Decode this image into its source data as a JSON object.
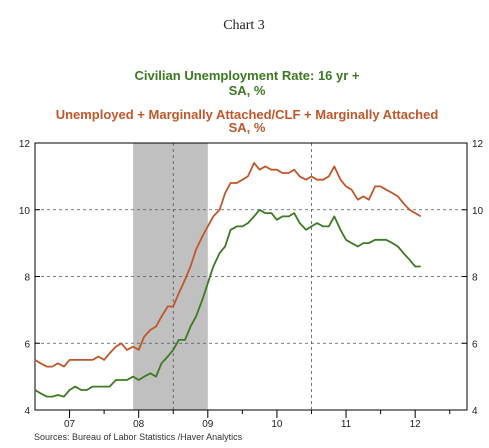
{
  "chart_data": {
    "type": "line",
    "chart_label": "Chart 3",
    "title_lines": [
      {
        "series": 0,
        "lines": [
          "Civilian Unemployment Rate: 16 yr +",
          "SA, %"
        ]
      },
      {
        "series": 1,
        "lines": [
          "Unemployed + Marginally Attached/CLF + Marginally Attached",
          "SA, %"
        ]
      }
    ],
    "source": "Sources:  Bureau of Labor Statistics /Haver Analytics",
    "xlim": [
      2006.5,
      2012.75
    ],
    "ylim": [
      4,
      12
    ],
    "y_ticks": [
      4,
      6,
      8,
      10,
      12
    ],
    "x_tick_labels": [
      {
        "label": "07",
        "center": 2007.0
      },
      {
        "label": "08",
        "center": 2008.0
      },
      {
        "label": "09",
        "center": 2009.0
      },
      {
        "label": "10",
        "center": 2010.0
      },
      {
        "label": "11",
        "center": 2011.0
      },
      {
        "label": "12",
        "center": 2012.0
      }
    ],
    "x_minor_ticks": [
      2007.5,
      2008.5,
      2009.5,
      2010.5,
      2011.5,
      2012.5
    ],
    "x_major_ticks": [
      2007.0,
      2008.0,
      2009.0,
      2010.0,
      2011.0,
      2012.0
    ],
    "v_gridlines": [
      2008.5,
      2010.5
    ],
    "h_gridlines": [
      6,
      8,
      10
    ],
    "recession": {
      "start": 2007.92,
      "end": 2009.0
    },
    "grid": true,
    "series": [
      {
        "color": "#3d7a23",
        "points": [
          [
            2006.5,
            4.6
          ],
          [
            2006.58,
            4.5
          ],
          [
            2006.67,
            4.4
          ],
          [
            2006.75,
            4.4
          ],
          [
            2006.83,
            4.45
          ],
          [
            2006.92,
            4.4
          ],
          [
            2007.0,
            4.6
          ],
          [
            2007.08,
            4.7
          ],
          [
            2007.17,
            4.6
          ],
          [
            2007.25,
            4.6
          ],
          [
            2007.33,
            4.7
          ],
          [
            2007.42,
            4.7
          ],
          [
            2007.5,
            4.7
          ],
          [
            2007.58,
            4.7
          ],
          [
            2007.67,
            4.9
          ],
          [
            2007.75,
            4.9
          ],
          [
            2007.83,
            4.9
          ],
          [
            2007.92,
            5.0
          ],
          [
            2008.0,
            4.9
          ],
          [
            2008.08,
            5.0
          ],
          [
            2008.17,
            5.1
          ],
          [
            2008.25,
            5.0
          ],
          [
            2008.33,
            5.4
          ],
          [
            2008.42,
            5.6
          ],
          [
            2008.5,
            5.8
          ],
          [
            2008.58,
            6.1
          ],
          [
            2008.67,
            6.1
          ],
          [
            2008.75,
            6.5
          ],
          [
            2008.83,
            6.8
          ],
          [
            2008.92,
            7.3
          ],
          [
            2009.0,
            7.8
          ],
          [
            2009.08,
            8.3
          ],
          [
            2009.17,
            8.7
          ],
          [
            2009.25,
            8.9
          ],
          [
            2009.33,
            9.4
          ],
          [
            2009.42,
            9.5
          ],
          [
            2009.5,
            9.5
          ],
          [
            2009.58,
            9.6
          ],
          [
            2009.67,
            9.8
          ],
          [
            2009.75,
            10.0
          ],
          [
            2009.83,
            9.9
          ],
          [
            2009.92,
            9.9
          ],
          [
            2010.0,
            9.7
          ],
          [
            2010.08,
            9.8
          ],
          [
            2010.17,
            9.8
          ],
          [
            2010.25,
            9.9
          ],
          [
            2010.33,
            9.6
          ],
          [
            2010.42,
            9.4
          ],
          [
            2010.5,
            9.5
          ],
          [
            2010.58,
            9.6
          ],
          [
            2010.67,
            9.5
          ],
          [
            2010.75,
            9.5
          ],
          [
            2010.83,
            9.8
          ],
          [
            2010.92,
            9.4
          ],
          [
            2011.0,
            9.1
          ],
          [
            2011.08,
            9.0
          ],
          [
            2011.17,
            8.9
          ],
          [
            2011.25,
            9.0
          ],
          [
            2011.33,
            9.0
          ],
          [
            2011.42,
            9.1
          ],
          [
            2011.5,
            9.1
          ],
          [
            2011.58,
            9.1
          ],
          [
            2011.67,
            9.0
          ],
          [
            2011.75,
            8.9
          ],
          [
            2011.83,
            8.7
          ],
          [
            2011.92,
            8.5
          ],
          [
            2012.0,
            8.3
          ],
          [
            2012.08,
            8.3
          ]
        ]
      },
      {
        "color": "#c0572b",
        "points": [
          [
            2006.5,
            5.5
          ],
          [
            2006.58,
            5.4
          ],
          [
            2006.67,
            5.3
          ],
          [
            2006.75,
            5.3
          ],
          [
            2006.83,
            5.4
          ],
          [
            2006.92,
            5.3
          ],
          [
            2007.0,
            5.5
          ],
          [
            2007.08,
            5.5
          ],
          [
            2007.17,
            5.5
          ],
          [
            2007.25,
            5.5
          ],
          [
            2007.33,
            5.5
          ],
          [
            2007.42,
            5.6
          ],
          [
            2007.5,
            5.5
          ],
          [
            2007.58,
            5.7
          ],
          [
            2007.67,
            5.9
          ],
          [
            2007.75,
            6.0
          ],
          [
            2007.83,
            5.8
          ],
          [
            2007.92,
            5.9
          ],
          [
            2008.0,
            5.8
          ],
          [
            2008.08,
            6.2
          ],
          [
            2008.17,
            6.4
          ],
          [
            2008.25,
            6.5
          ],
          [
            2008.33,
            6.8
          ],
          [
            2008.42,
            7.1
          ],
          [
            2008.5,
            7.1
          ],
          [
            2008.58,
            7.5
          ],
          [
            2008.67,
            7.9
          ],
          [
            2008.75,
            8.3
          ],
          [
            2008.83,
            8.8
          ],
          [
            2008.92,
            9.2
          ],
          [
            2009.0,
            9.5
          ],
          [
            2009.08,
            9.8
          ],
          [
            2009.17,
            10.0
          ],
          [
            2009.25,
            10.5
          ],
          [
            2009.33,
            10.8
          ],
          [
            2009.42,
            10.8
          ],
          [
            2009.5,
            10.9
          ],
          [
            2009.58,
            11.0
          ],
          [
            2009.67,
            11.4
          ],
          [
            2009.75,
            11.2
          ],
          [
            2009.83,
            11.3
          ],
          [
            2009.92,
            11.2
          ],
          [
            2010.0,
            11.2
          ],
          [
            2010.08,
            11.1
          ],
          [
            2010.17,
            11.1
          ],
          [
            2010.25,
            11.2
          ],
          [
            2010.33,
            11.0
          ],
          [
            2010.42,
            10.9
          ],
          [
            2010.5,
            11.0
          ],
          [
            2010.58,
            10.9
          ],
          [
            2010.67,
            10.9
          ],
          [
            2010.75,
            11.0
          ],
          [
            2010.83,
            11.3
          ],
          [
            2010.92,
            10.9
          ],
          [
            2011.0,
            10.7
          ],
          [
            2011.08,
            10.6
          ],
          [
            2011.17,
            10.3
          ],
          [
            2011.25,
            10.4
          ],
          [
            2011.33,
            10.3
          ],
          [
            2011.42,
            10.7
          ],
          [
            2011.5,
            10.7
          ],
          [
            2011.58,
            10.6
          ],
          [
            2011.67,
            10.5
          ],
          [
            2011.75,
            10.4
          ],
          [
            2011.83,
            10.2
          ],
          [
            2011.92,
            10.0
          ],
          [
            2012.0,
            9.9
          ],
          [
            2012.08,
            9.8
          ]
        ]
      }
    ]
  }
}
